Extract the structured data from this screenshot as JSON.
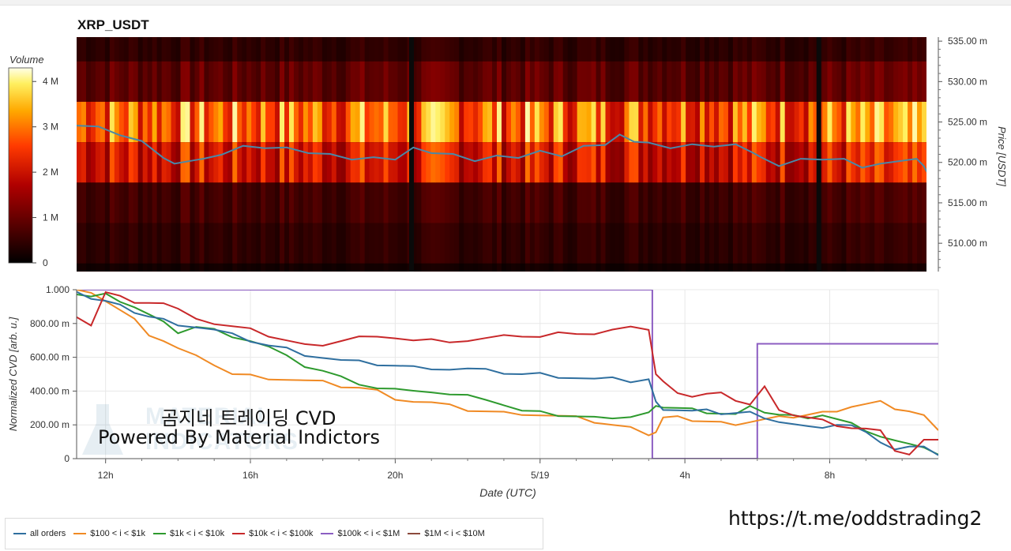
{
  "header": {
    "title": "XRP_USDT"
  },
  "colorbar": {
    "label": "Volume",
    "ticks": [
      "4 M",
      "3 M",
      "2 M",
      "1 M",
      "0"
    ],
    "tick_values": [
      4,
      3,
      2,
      1,
      0
    ],
    "max": 4.3
  },
  "price_axis": {
    "label": "Price [USDT]",
    "ticks": [
      "535.00 m",
      "530.00 m",
      "525.00 m",
      "520.00 m",
      "515.00 m",
      "510.00 m"
    ],
    "tick_values": [
      535,
      530,
      525,
      520,
      515,
      510
    ],
    "range": [
      506.5,
      535.5
    ]
  },
  "cvd_axis": {
    "label": "Normalized CVD [arb. u.]",
    "ticks": [
      "1.000",
      "800.00 m",
      "600.00 m",
      "400.00 m",
      "200.00 m",
      "0"
    ],
    "tick_values": [
      1.0,
      0.8,
      0.6,
      0.4,
      0.2,
      0.0
    ]
  },
  "x_axis": {
    "label": "Date (UTC)",
    "ticks": [
      "12h",
      "16h",
      "20h",
      "5/19",
      "4h",
      "8h"
    ],
    "tick_hours": [
      12,
      16,
      20,
      24,
      28,
      32
    ],
    "range_hours": [
      11.2,
      35.0
    ]
  },
  "watermark": {
    "line1": "곰지네 트레이딩 CVD",
    "line2": "Powered By Material Indictors",
    "logo_text": "MATERIAL INDICATORS"
  },
  "link_text": "https://t.me/oddstrading2",
  "colors": {
    "all": "#2f6f9f",
    "s100": "#f08a24",
    "s1k": "#2e9a2e",
    "s10k": "#c8282a",
    "s100k": "#8c5ec2",
    "s1m": "#8c4a3c",
    "price_line": "#4a88a8"
  },
  "legend": [
    {
      "label": "all orders",
      "color": "#2f6f9f"
    },
    {
      "label": "$100 < i < $1k",
      "color": "#f08a24"
    },
    {
      "label": "$1k < i < $10k",
      "color": "#2e9a2e"
    },
    {
      "label": "$10k < i < $100k",
      "color": "#c8282a"
    },
    {
      "label": "$100k < i < $1M",
      "color": "#8c5ec2"
    },
    {
      "label": "$1M < i < $10M",
      "color": "#8c4a3c"
    }
  ],
  "chart_data": [
    {
      "type": "heatmap",
      "title": "XRP_USDT",
      "ylabel": "Price [USDT]",
      "y_unit": "m",
      "y_range": [
        506.5,
        535.5
      ],
      "price_bands": [
        {
          "range": [
            532.5,
            535.5
          ],
          "volume_m": 0.5
        },
        {
          "range": [
            527.5,
            532.5
          ],
          "volume_m": 1.0
        },
        {
          "range": [
            522.5,
            527.5
          ],
          "volume_m": 3.2
        },
        {
          "range": [
            517.5,
            522.5
          ],
          "volume_m": 2.3
        },
        {
          "range": [
            512.5,
            517.5
          ],
          "volume_m": 0.7
        },
        {
          "range": [
            507.5,
            512.5
          ],
          "volume_m": 0.5
        },
        {
          "range": [
            506.5,
            507.5
          ],
          "volume_m": 0.2
        }
      ],
      "gaps_hours": [
        20.45,
        31.7
      ],
      "price_series": {
        "name": "price",
        "x_hours": [
          11.2,
          11.8,
          12.4,
          13.0,
          13.6,
          13.9,
          14.3,
          14.7,
          15.2,
          15.8,
          16.4,
          17.0,
          17.6,
          18.2,
          18.8,
          19.4,
          20.0,
          20.5,
          21.0,
          21.6,
          22.2,
          22.8,
          23.4,
          24.0,
          24.6,
          25.2,
          25.8,
          26.2,
          26.6,
          27.0,
          27.6,
          28.2,
          28.8,
          29.4,
          29.9,
          30.1,
          30.6,
          31.2,
          31.8,
          32.4,
          32.9,
          33.4,
          33.9,
          34.4,
          34.6,
          34.8
        ],
        "y": [
          524.8,
          524.2,
          523.6,
          522.4,
          520.8,
          519.6,
          520.4,
          520.2,
          521.2,
          521.8,
          522.0,
          521.6,
          521.4,
          520.8,
          520.6,
          520.4,
          520.6,
          521.6,
          521.4,
          520.8,
          520.4,
          520.6,
          520.8,
          521.2,
          521.0,
          521.8,
          522.4,
          523.2,
          522.8,
          522.2,
          522.0,
          522.0,
          522.2,
          522.0,
          521.4,
          520.4,
          519.8,
          520.2,
          520.6,
          520.2,
          519.6,
          519.6,
          520.4,
          520.2,
          519.8,
          517.6
        ]
      }
    },
    {
      "type": "line",
      "xlabel": "Date (UTC)",
      "ylabel": "Normalized CVD [arb. u.]",
      "ylim": [
        0,
        1.0
      ],
      "x_hours": [
        11.2,
        11.6,
        12.0,
        12.4,
        12.8,
        13.2,
        13.6,
        14.0,
        14.5,
        15.0,
        15.5,
        16.0,
        16.5,
        17.0,
        17.5,
        18.0,
        18.5,
        19.0,
        19.5,
        20.0,
        20.5,
        21.0,
        21.5,
        22.0,
        22.5,
        23.0,
        23.5,
        24.0,
        24.5,
        25.0,
        25.5,
        26.0,
        26.5,
        27.0,
        27.2,
        27.4,
        27.8,
        28.2,
        28.6,
        29.0,
        29.4,
        29.8,
        30.2,
        30.6,
        31.0,
        31.4,
        31.8,
        32.2,
        32.6,
        33.0,
        33.4,
        33.8,
        34.2,
        34.6,
        35.0
      ],
      "series": [
        {
          "name": "all orders",
          "values": [
            1.0,
            0.95,
            0.93,
            0.9,
            0.87,
            0.84,
            0.82,
            0.8,
            0.78,
            0.76,
            0.73,
            0.7,
            0.67,
            0.65,
            0.62,
            0.6,
            0.58,
            0.57,
            0.56,
            0.55,
            0.54,
            0.54,
            0.53,
            0.53,
            0.52,
            0.51,
            0.5,
            0.5,
            0.49,
            0.48,
            0.47,
            0.47,
            0.46,
            0.47,
            0.33,
            0.3,
            0.29,
            0.28,
            0.28,
            0.27,
            0.27,
            0.27,
            0.25,
            0.22,
            0.2,
            0.18,
            0.19,
            0.2,
            0.19,
            0.17,
            0.1,
            0.05,
            0.06,
            0.08,
            0.02
          ]
        },
        {
          "name": "$100 < i < $1k",
          "values": [
            1.0,
            0.97,
            0.94,
            0.88,
            0.82,
            0.74,
            0.7,
            0.65,
            0.6,
            0.56,
            0.5,
            0.49,
            0.48,
            0.47,
            0.46,
            0.45,
            0.43,
            0.42,
            0.4,
            0.36,
            0.34,
            0.33,
            0.31,
            0.29,
            0.28,
            0.27,
            0.27,
            0.26,
            0.25,
            0.24,
            0.22,
            0.2,
            0.18,
            0.15,
            0.16,
            0.24,
            0.24,
            0.23,
            0.22,
            0.21,
            0.21,
            0.22,
            0.23,
            0.24,
            0.25,
            0.26,
            0.27,
            0.29,
            0.31,
            0.32,
            0.33,
            0.3,
            0.28,
            0.25,
            0.18
          ]
        },
        {
          "name": "$1k < i < $10k",
          "values": [
            0.98,
            0.96,
            0.97,
            0.94,
            0.9,
            0.85,
            0.8,
            0.75,
            0.78,
            0.76,
            0.73,
            0.7,
            0.66,
            0.6,
            0.55,
            0.52,
            0.48,
            0.45,
            0.42,
            0.41,
            0.39,
            0.4,
            0.38,
            0.37,
            0.36,
            0.32,
            0.28,
            0.27,
            0.26,
            0.25,
            0.24,
            0.25,
            0.25,
            0.27,
            0.3,
            0.31,
            0.3,
            0.29,
            0.28,
            0.27,
            0.26,
            0.3,
            0.28,
            0.26,
            0.25,
            0.25,
            0.26,
            0.23,
            0.2,
            0.17,
            0.13,
            0.1,
            0.1,
            0.07,
            0.02
          ]
        },
        {
          "name": "$10k < i < $100k",
          "values": [
            0.83,
            0.8,
            0.99,
            0.96,
            0.91,
            0.93,
            0.92,
            0.88,
            0.84,
            0.8,
            0.78,
            0.76,
            0.73,
            0.7,
            0.67,
            0.68,
            0.7,
            0.72,
            0.71,
            0.72,
            0.7,
            0.7,
            0.7,
            0.7,
            0.71,
            0.72,
            0.73,
            0.72,
            0.74,
            0.75,
            0.74,
            0.76,
            0.77,
            0.77,
            0.5,
            0.45,
            0.4,
            0.37,
            0.38,
            0.38,
            0.35,
            0.32,
            0.42,
            0.3,
            0.26,
            0.24,
            0.22,
            0.2,
            0.18,
            0.17,
            0.18,
            0.05,
            0.02,
            0.1,
            0.12
          ]
        },
        {
          "name": "$100k < i < $1M",
          "values": [
            1.0,
            1.0,
            1.0,
            1.0,
            1.0,
            1.0,
            1.0,
            1.0,
            1.0,
            1.0,
            1.0,
            1.0,
            1.0,
            1.0,
            1.0,
            1.0,
            1.0,
            1.0,
            1.0,
            1.0,
            1.0,
            1.0,
            1.0,
            1.0,
            1.0,
            1.0,
            1.0,
            1.0,
            1.0,
            1.0,
            1.0,
            1.0,
            1.0,
            1.0,
            0.0,
            0.0,
            0.0,
            0.0,
            0.0,
            0.0,
            0.0,
            0.0,
            0.68,
            0.68,
            0.68,
            0.68,
            0.68,
            0.68,
            0.68,
            0.68,
            0.68,
            0.68,
            0.68,
            0.68,
            0.68
          ]
        },
        {
          "name": "$1M < i < $10M",
          "values": []
        }
      ]
    }
  ]
}
